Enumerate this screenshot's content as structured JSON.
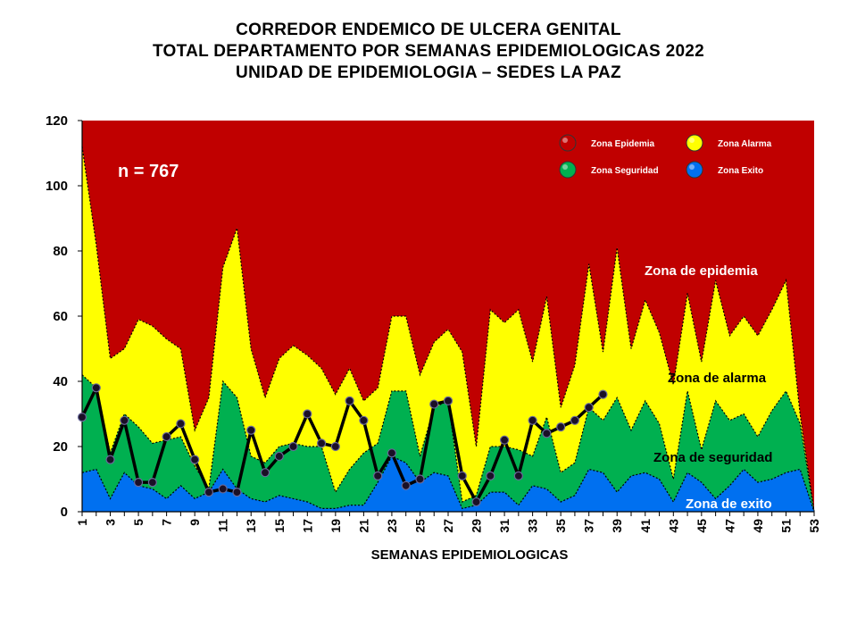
{
  "title_lines": [
    "CORREDOR ENDEMICO DE ULCERA GENITAL",
    "TOTAL DEPARTAMENTO POR SEMANAS EPIDEMIOLOGICAS 2022",
    "UNIDAD DE EPIDEMIOLOGIA – SEDES LA PAZ"
  ],
  "annotation_n": "n = 767",
  "zone_labels": {
    "epidemia": "Zona de epidemia",
    "alarma": "Zona de alarma",
    "seguridad": "Zona de  seguridad",
    "exito": "Zona de exito"
  },
  "colors": {
    "epidemia": "#C00000",
    "alarma": "#FFFF00",
    "seguridad": "#00B050",
    "exito": "#0070F0",
    "cases_line": "#000000"
  },
  "chart_data": {
    "type": "area",
    "xlabel": "SEMANAS EPIDEMIOLOGICAS",
    "ylabel": "",
    "ylim": [
      0,
      120
    ],
    "yticks": [
      0,
      20,
      40,
      60,
      80,
      100,
      120
    ],
    "xlim": [
      1,
      53
    ],
    "xtick_labels": [
      "1",
      "3",
      "5",
      "7",
      "9",
      "11",
      "13",
      "15",
      "17",
      "19",
      "21",
      "23",
      "25",
      "27",
      "29",
      "31",
      "33",
      "35",
      "37",
      "39",
      "41",
      "43",
      "45",
      "47",
      "49",
      "51",
      "53"
    ],
    "legend": {
      "position": "top-right",
      "entries": [
        {
          "label": "Zona Epidemia",
          "color": "#C00000"
        },
        {
          "label": "Zona Alarma",
          "color": "#FFFF00"
        },
        {
          "label": "Zona Seguridad",
          "color": "#00B050"
        },
        {
          "label": "Zona Exito",
          "color": "#0070F0"
        }
      ]
    },
    "weeks": [
      1,
      2,
      3,
      4,
      5,
      6,
      7,
      8,
      9,
      10,
      11,
      12,
      13,
      14,
      15,
      16,
      17,
      18,
      19,
      20,
      21,
      22,
      23,
      24,
      25,
      26,
      27,
      28,
      29,
      30,
      31,
      32,
      33,
      34,
      35,
      36,
      37,
      38,
      39,
      40,
      41,
      42,
      43,
      44,
      45,
      46,
      47,
      48,
      49,
      50,
      51,
      52,
      53
    ],
    "series": [
      {
        "name": "Zona Exito",
        "values": [
          12,
          13,
          4,
          12,
          8,
          7,
          4,
          8,
          4,
          6,
          13,
          7,
          4,
          3,
          5,
          4,
          3,
          1,
          1,
          2,
          2,
          9,
          17,
          15,
          9,
          12,
          11,
          1,
          2,
          6,
          6,
          2,
          8,
          7,
          3,
          5,
          13,
          12,
          6,
          11,
          12,
          10,
          3,
          12,
          9,
          4,
          8,
          13,
          9,
          10,
          12,
          13,
          0
        ]
      },
      {
        "name": "Zona Seguridad",
        "values": [
          42,
          38,
          18,
          30,
          26,
          21,
          22,
          23,
          14,
          7,
          40,
          35,
          17,
          15,
          20,
          21,
          20,
          20,
          6,
          13,
          18,
          21,
          37,
          37,
          17,
          32,
          34,
          3,
          5,
          20,
          20,
          19,
          17,
          29,
          12,
          15,
          32,
          28,
          35,
          25,
          34,
          27,
          10,
          37,
          19,
          34,
          28,
          30,
          23,
          31,
          37,
          27,
          0
        ]
      },
      {
        "name": "Zona Alarma",
        "values": [
          112,
          82,
          47,
          50,
          59,
          57,
          53,
          50,
          25,
          35,
          75,
          87,
          50,
          35,
          47,
          51,
          48,
          44,
          36,
          44,
          34,
          38,
          60,
          60,
          42,
          52,
          56,
          49,
          20,
          62,
          58,
          62,
          46,
          66,
          32,
          45,
          76,
          49,
          81,
          50,
          65,
          55,
          39,
          67,
          46,
          71,
          54,
          60,
          54,
          62,
          71,
          30,
          0
        ]
      },
      {
        "name": "Casos 2022",
        "values": [
          29,
          38,
          16,
          28,
          9,
          9,
          23,
          27,
          16,
          6,
          7,
          6,
          25,
          12,
          17,
          20,
          30,
          21,
          20,
          34,
          28,
          11,
          18,
          8,
          10,
          33,
          34,
          11,
          3,
          11,
          22,
          11,
          28,
          24,
          26,
          28,
          32,
          36
        ]
      }
    ]
  }
}
